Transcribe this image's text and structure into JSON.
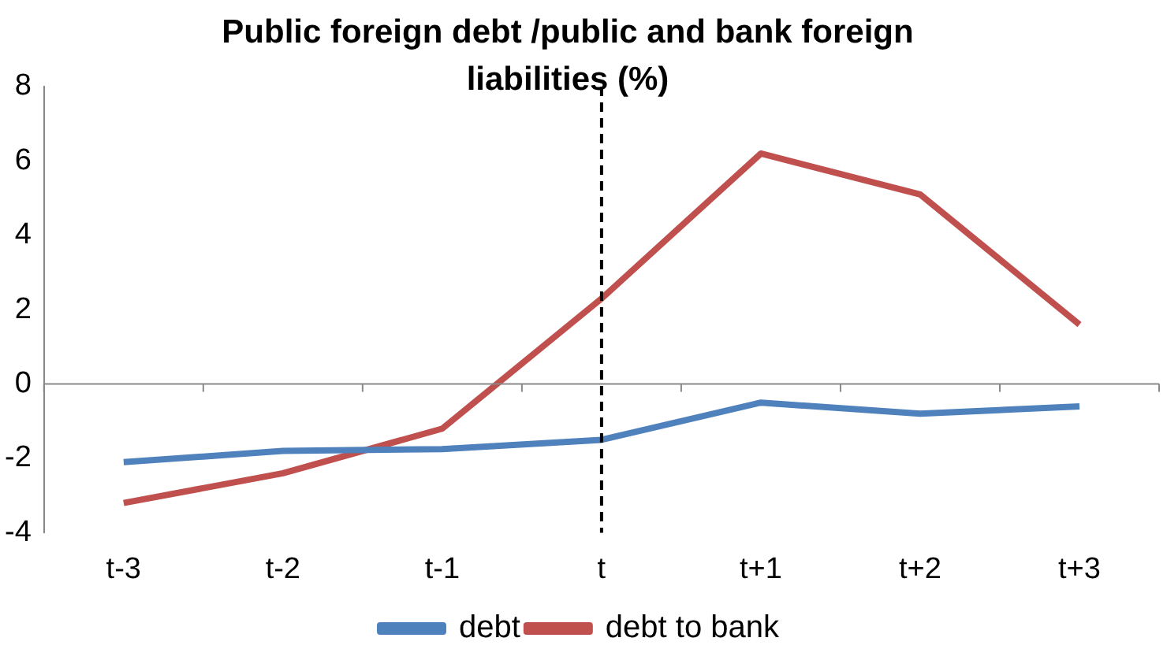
{
  "chart_data": {
    "type": "line",
    "title": "Public foreign debt /public and bank foreign liabilities (%)",
    "categories": [
      "t-3",
      "t-2",
      "t-1",
      "t",
      "t+1",
      "t+2",
      "t+3"
    ],
    "series": [
      {
        "name": "debt",
        "color": "#4f81bd",
        "values": [
          -2.1,
          -1.8,
          -1.75,
          -1.5,
          -0.5,
          -0.8,
          -0.6
        ]
      },
      {
        "name": "debt to bank",
        "color": "#c0504d",
        "values": [
          -3.2,
          -2.4,
          -1.2,
          2.3,
          6.2,
          5.1,
          1.6
        ]
      }
    ],
    "ylim": [
      -4,
      8
    ],
    "yticks": [
      -4,
      -2,
      0,
      2,
      4,
      6,
      8
    ],
    "grid": false,
    "legend": "bottom",
    "marker": "none",
    "line_style": "solid",
    "ref_lines": [
      {
        "axis": "x",
        "value": "t",
        "color": "#000000",
        "line_style": "dashed"
      }
    ]
  }
}
